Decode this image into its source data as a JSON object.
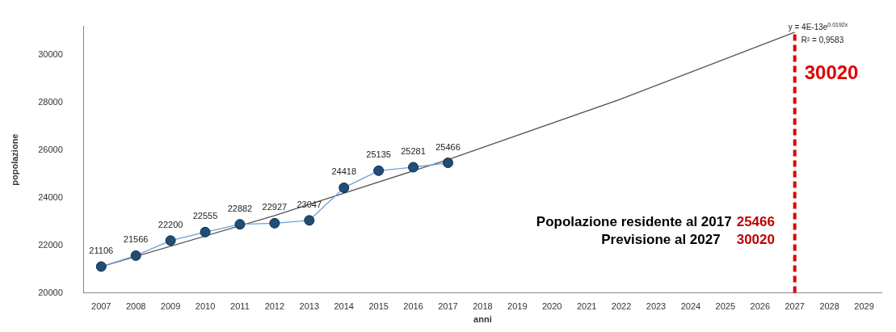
{
  "chart_data": {
    "type": "line",
    "xlabel": "anni",
    "ylabel": "popolazione",
    "categories": [
      "2007",
      "2008",
      "2009",
      "2010",
      "2011",
      "2012",
      "2013",
      "2014",
      "2015",
      "2016",
      "2017",
      "2018",
      "2019",
      "2020",
      "2021",
      "2022",
      "2023",
      "2024",
      "2025",
      "2026",
      "2027",
      "2028",
      "2029"
    ],
    "series": [
      {
        "color": "#6f9fd8",
        "marker": "circle",
        "values": [
          21106,
          21566,
          22200,
          22555,
          22882,
          22927,
          23047,
          24418,
          25135,
          25281,
          25466,
          null,
          null,
          null,
          null,
          null,
          null,
          null,
          null,
          null,
          null,
          null,
          null
        ],
        "value_labels": [
          "21106",
          "21566",
          "22200",
          "22555",
          "22882",
          "22927",
          "23047",
          "24418",
          "25135",
          "25281",
          "25466",
          null,
          null,
          null,
          null,
          null,
          null,
          null,
          null,
          null,
          null,
          null,
          null
        ]
      },
      {
        "type": "line",
        "color": "#555555",
        "marker": "none",
        "values": [
          21100,
          null,
          null,
          null,
          null,
          23250,
          null,
          null,
          null,
          null,
          25600,
          null,
          null,
          null,
          null,
          28150,
          null,
          null,
          null,
          null,
          30950,
          null,
          null
        ]
      }
    ],
    "ylim": [
      20000,
      31200
    ],
    "yticks": [
      20000,
      22000,
      24000,
      26000,
      28000,
      30000
    ],
    "grid": false,
    "legend": false,
    "ref_lines": [
      {
        "axis": "x",
        "value": "2027",
        "label": "30020",
        "color": "#e00000",
        "line_style": "dashed"
      }
    ],
    "annotations": [
      "y = 4E-13e$^{0.0192x}$",
      "R² = 0,9583",
      "Popolazione residente al 2017",
      "25466",
      "Previsione al 2027",
      "30020"
    ]
  }
}
